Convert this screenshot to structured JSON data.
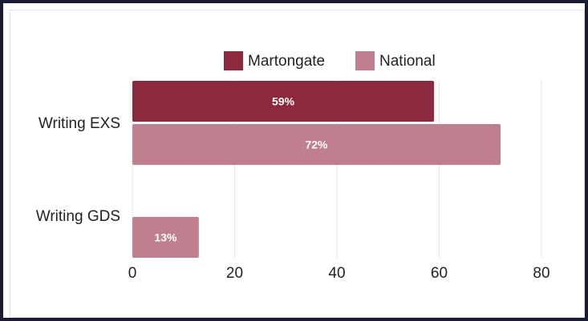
{
  "chart_data": {
    "type": "bar",
    "orientation": "horizontal",
    "categories": [
      "Writing EXS",
      "Writing GDS"
    ],
    "series": [
      {
        "name": "Martongate",
        "color": "#8b2a3e",
        "values": [
          59,
          null
        ],
        "labels": [
          "59%",
          ""
        ]
      },
      {
        "name": "National",
        "color": "#bf7f8e",
        "values": [
          72,
          13
        ],
        "labels": [
          "72%",
          "13%"
        ]
      }
    ],
    "xlim": [
      0,
      80
    ],
    "xticks": [
      "0",
      "20",
      "40",
      "60",
      "80"
    ],
    "tick_values": [
      0,
      20,
      40,
      60,
      80
    ],
    "grid": true,
    "legend": "top"
  }
}
